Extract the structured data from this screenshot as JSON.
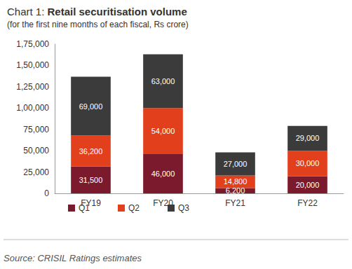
{
  "chart_data": {
    "type": "bar",
    "title": "Chart 1: Retail securitisation volume",
    "subtitle": "(for the first nine months of each fiscal, Rs crore)",
    "source": "Source: CRISIL Ratings estimates",
    "categories": [
      "FY19",
      "FY20",
      "FY21",
      "FY22"
    ],
    "series": [
      {
        "name": "Q1",
        "color": "#7a1a2c",
        "values": [
          31500,
          46000,
          6200,
          20000
        ],
        "value_labels": [
          "31,500",
          "46,000",
          "6,200",
          "20,000"
        ]
      },
      {
        "name": "Q2",
        "color": "#e2401c",
        "values": [
          36200,
          54000,
          14800,
          30000
        ],
        "value_labels": [
          "36,200",
          "54,000",
          "14,800",
          "30,000"
        ]
      },
      {
        "name": "Q3",
        "color": "#3b3b3b",
        "values": [
          69000,
          63000,
          27000,
          29000
        ],
        "value_labels": [
          "69,000",
          "63,000",
          "27,000",
          "29,000"
        ]
      }
    ],
    "ylim": [
      0,
      175000
    ],
    "yticks": [
      0,
      {
        "value": 25000,
        "label": "25,000"
      },
      {
        "value": 50000,
        "label": "50,000"
      },
      {
        "value": 75000,
        "label": "75,000"
      },
      {
        "value": 100000,
        "label": "1,00,000"
      },
      {
        "value": 125000,
        "label": "1,25,000"
      },
      {
        "value": 150000,
        "label": "1,50,000"
      },
      {
        "value": 175000,
        "label": "1,75,000"
      }
    ],
    "stacked": true,
    "data_labels": true,
    "grid": false,
    "legend": "bottom-left"
  }
}
